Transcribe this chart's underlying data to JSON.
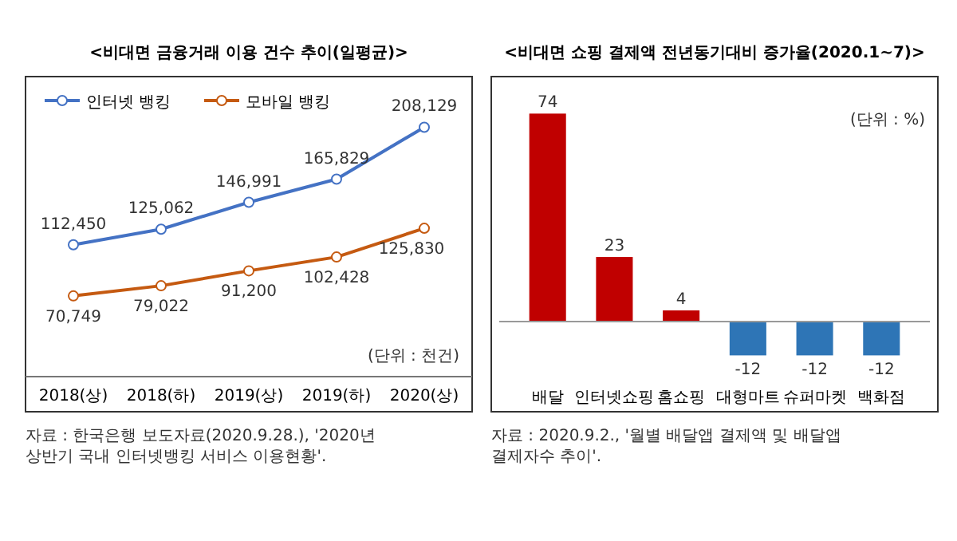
{
  "chart_data": [
    {
      "type": "line",
      "title": "<비대면 금융거래 이용 건수 추이(일평균)>",
      "categories": [
        "2018(상)",
        "2018(하)",
        "2019(상)",
        "2019(하)",
        "2020(상)"
      ],
      "series": [
        {
          "name": "인터넷 뱅킹",
          "color": "#4472c4",
          "values": [
            112450,
            125062,
            146991,
            165829,
            208129
          ],
          "value_labels": [
            "112,450",
            "125,062",
            "146,991",
            "165,829",
            "208,129"
          ]
        },
        {
          "name": "모바일 뱅킹",
          "color": "#c55a11",
          "values": [
            70749,
            79022,
            91200,
            102428,
            125830
          ],
          "value_labels": [
            "70,749",
            "79,022",
            "91,200",
            "102,428",
            "125,830"
          ]
        }
      ],
      "marker": "circle",
      "legend": "top left",
      "annotations": [
        "(단위 : 천건)",
        "자료 : 한국은행 보도자료(2020.9.28.), '2020년 상반기 국내 인터넷뱅킹 서비스 이용현황'."
      ]
    },
    {
      "type": "bar",
      "title": "<비대면 쇼핑 결제액 전년동기대비 증가율(2020.1~7)>",
      "categories": [
        "배달",
        "인터넷쇼핑",
        "홈쇼핑",
        "대형마트",
        "슈퍼마켓",
        "백화점"
      ],
      "values": [
        74,
        23,
        4,
        -12,
        -12,
        -12
      ],
      "colors": [
        "#c00000",
        "#c00000",
        "#c00000",
        "#2e75b6",
        "#2e75b6",
        "#2e75b6"
      ],
      "data_labels": true,
      "relative": false,
      "annotations": [
        "(단위 : %)",
        "자료 : 2020.9.2., '월별 배달앱 결제액 및 배달앱 결제자수 추이'."
      ]
    }
  ]
}
